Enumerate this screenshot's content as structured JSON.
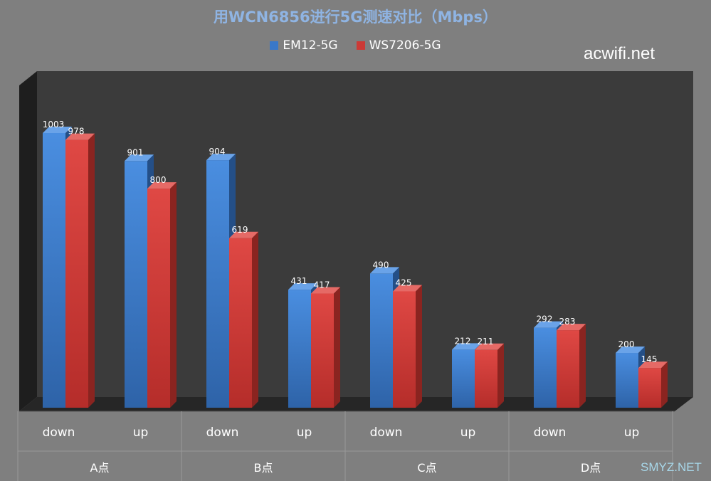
{
  "chart_data": {
    "type": "bar",
    "title": "用WCN6856进行5G测速对比（Mbps）",
    "groups": [
      "A点",
      "B点",
      "C点",
      "D点"
    ],
    "categories": [
      "down",
      "up",
      "down",
      "up",
      "down",
      "up",
      "down",
      "up"
    ],
    "series": [
      {
        "name": "EM12-5G",
        "values": [
          1003,
          901,
          904,
          431,
          490,
          212,
          292,
          200
        ],
        "color": "#3a78c8"
      },
      {
        "name": "WS7206-5G",
        "values": [
          978,
          800,
          619,
          417,
          425,
          211,
          283,
          145
        ],
        "color": "#cc3a36"
      }
    ],
    "ylim": [
      0,
      1100
    ],
    "grid": false,
    "legend_position": "top"
  },
  "watermarks": {
    "top_right": "acwifi.net",
    "bottom_right": "SMYZ.NET"
  }
}
